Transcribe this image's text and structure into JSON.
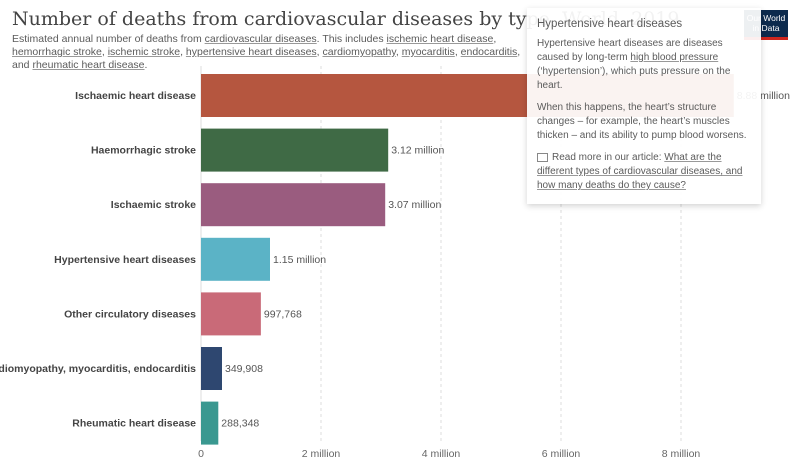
{
  "header": {
    "title": "Number of deaths from cardiovascular diseases by type, World, 2019",
    "subtitle_prefix": "Estimated annual number of deaths from ",
    "subtitle_link_1": "cardiovascular diseases",
    "subtitle_mid": ". This includes ",
    "subtitle_links": [
      "ischemic heart disease",
      "hemorrhagic stroke",
      "ischemic stroke",
      "hypertensive heart diseases",
      "cardiomyopathy",
      "myocarditis",
      "endocarditis"
    ],
    "subtitle_and": "and",
    "subtitle_last_link": "rheumatic heart disease",
    "subtitle_end": "."
  },
  "logo": {
    "line1": "Our World",
    "line2": "in Data"
  },
  "tooltip": {
    "title": "Hypertensive heart diseases",
    "p1_a": "Hypertensive heart diseases are diseases caused by long-term ",
    "p1_link": "high blood pressure",
    "p1_b": " (‘hypertension’), which puts pressure on the heart.",
    "p2": "When this happens, the heart’s structure changes – for example, the heart’s muscles thicken – and its ability to pump blood worsens.",
    "p3_a": "Read more in our article: ",
    "p3_link": "What are the different types of cardiovascular diseases, and how many deaths do they cause?"
  },
  "chart_data": {
    "type": "bar",
    "orientation": "horizontal",
    "title": "Number of deaths from cardiovascular diseases by type, World, 2019",
    "categories": [
      "Ischaemic heart disease",
      "Haemorrhagic stroke",
      "Ischaemic stroke",
      "Hypertensive heart diseases",
      "Other circulatory diseases",
      "Cardiomyopathy, myocarditis, endocarditis",
      "Rheumatic heart disease"
    ],
    "values": [
      8880000,
      3120000,
      3070000,
      1150000,
      997768,
      349908,
      288348
    ],
    "value_labels": [
      "8.88 million",
      "3.12 million",
      "3.07 million",
      "1.15 million",
      "997,768",
      "349,908",
      "288,348"
    ],
    "colors": [
      "#b5563f",
      "#3f6a45",
      "#9a5c7f",
      "#5bb3c6",
      "#c96a78",
      "#2e4770",
      "#3a9890"
    ],
    "xlim": [
      0,
      9000000
    ],
    "xticks": [
      0,
      2000000,
      4000000,
      6000000,
      8000000
    ],
    "xtick_labels": [
      "0",
      "2 million",
      "4 million",
      "6 million",
      "8 million"
    ],
    "grid": true
  }
}
